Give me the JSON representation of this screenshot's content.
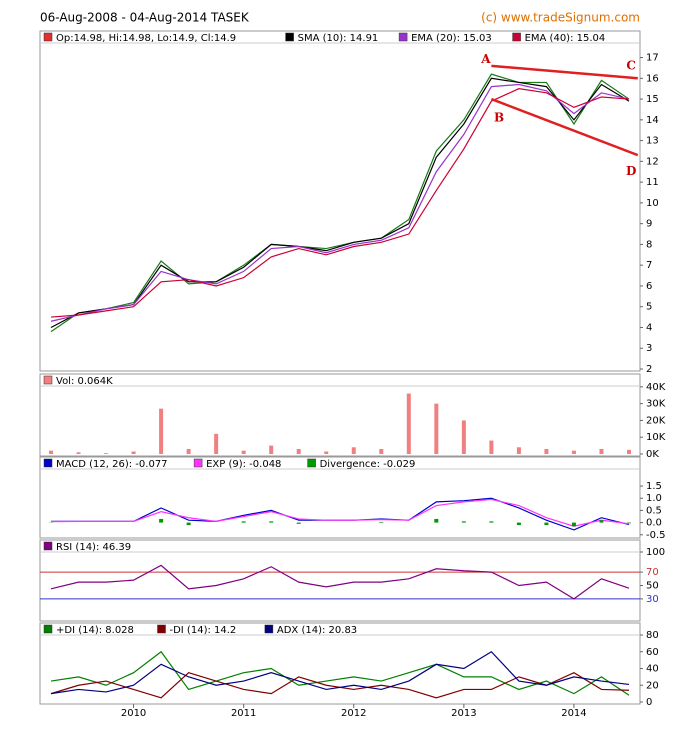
{
  "title": "06-Aug-2008 - 04-Aug-2014 TASEK",
  "credit": "(c) www.tradeSignum.com",
  "chart_data": [
    {
      "type": "line",
      "x": [
        2009.25,
        2009.5,
        2009.75,
        2010,
        2010.25,
        2010.5,
        2010.75,
        2011,
        2011.25,
        2011.5,
        2011.75,
        2012,
        2012.25,
        2012.5,
        2012.75,
        2013,
        2013.25,
        2013.5,
        2013.75,
        2014,
        2014.25,
        2014.5
      ],
      "xlim": [
        2009.15,
        2014.6
      ],
      "ylim": [
        2,
        17.7
      ],
      "yticks": [
        2,
        3,
        4,
        5,
        6,
        7,
        8,
        9,
        10,
        11,
        12,
        13,
        14,
        15,
        16,
        17
      ],
      "series": [
        {
          "name": "Op:14.98, Hi:14.98, Lo:14.9, Cl:14.9",
          "color": "#1a7a1a",
          "legend_color": "#e03030",
          "values": [
            3.8,
            4.7,
            4.9,
            5.2,
            7.2,
            6.1,
            6.2,
            7.0,
            8.0,
            7.9,
            7.8,
            8.1,
            8.3,
            9.2,
            12.5,
            14.0,
            16.2,
            15.8,
            15.8,
            13.8,
            15.9,
            15.0
          ]
        },
        {
          "name": "SMA (10): 14.91",
          "color": "#000000",
          "values": [
            4.0,
            4.7,
            4.9,
            5.1,
            7.0,
            6.2,
            6.2,
            6.9,
            8.0,
            7.9,
            7.7,
            8.1,
            8.3,
            9.0,
            12.2,
            13.8,
            16.0,
            15.8,
            15.6,
            14.0,
            15.7,
            14.9
          ]
        },
        {
          "name": "EMA (20): 15.03",
          "color": "#9933cc",
          "values": [
            4.3,
            4.6,
            4.9,
            5.1,
            6.7,
            6.3,
            6.1,
            6.7,
            7.8,
            7.9,
            7.6,
            8.0,
            8.2,
            8.8,
            11.5,
            13.3,
            15.6,
            15.7,
            15.4,
            14.3,
            15.3,
            15.0
          ]
        },
        {
          "name": "EMA (40): 15.04",
          "color": "#cc0033",
          "values": [
            4.5,
            4.6,
            4.8,
            5.0,
            6.2,
            6.3,
            6.0,
            6.4,
            7.4,
            7.8,
            7.5,
            7.9,
            8.1,
            8.5,
            10.6,
            12.6,
            14.9,
            15.5,
            15.3,
            14.6,
            15.1,
            15.0
          ]
        }
      ],
      "trendlines": [
        {
          "x": [
            2013.25,
            2014.58
          ],
          "y": [
            16.6,
            16.0
          ],
          "color": "#e02020"
        },
        {
          "x": [
            2013.25,
            2014.58
          ],
          "y": [
            15.0,
            12.3
          ],
          "color": "#e02020"
        }
      ],
      "annotations": [
        {
          "text": "A",
          "x": 2013.2,
          "y": 16.9
        },
        {
          "text": "B",
          "x": 2013.32,
          "y": 14.1
        },
        {
          "text": "C",
          "x": 2014.52,
          "y": 16.6
        },
        {
          "text": "D",
          "x": 2014.52,
          "y": 11.5
        }
      ]
    },
    {
      "type": "bar",
      "x": [
        2009.25,
        2009.5,
        2009.75,
        2010,
        2010.25,
        2010.5,
        2010.75,
        2011,
        2011.25,
        2011.5,
        2011.75,
        2012,
        2012.25,
        2012.5,
        2012.75,
        2013,
        2013.25,
        2013.5,
        2013.75,
        2014,
        2014.25,
        2014.5
      ],
      "xlim": [
        2009.15,
        2014.6
      ],
      "ylim": [
        0,
        40500
      ],
      "yticks": [
        {
          "value": 0,
          "label": "0K"
        },
        {
          "value": 10000,
          "label": "10K"
        },
        {
          "value": 20000,
          "label": "20K"
        },
        {
          "value": 30000,
          "label": "30K"
        },
        {
          "value": 40000,
          "label": "40K"
        }
      ],
      "series": [
        {
          "name": "Vol: 0.064K",
          "color": "#f08080",
          "values": [
            2000,
            1000,
            500,
            1500,
            27000,
            3000,
            12000,
            2000,
            5000,
            3000,
            1500,
            4000,
            3000,
            36000,
            30000,
            20000,
            8000,
            4000,
            3000,
            2000,
            3000,
            2500
          ]
        }
      ]
    },
    {
      "type": "line",
      "x": [
        2009.25,
        2009.5,
        2009.75,
        2010,
        2010.25,
        2010.5,
        2010.75,
        2011,
        2011.25,
        2011.5,
        2011.75,
        2012,
        2012.25,
        2012.5,
        2012.75,
        2013,
        2013.25,
        2013.5,
        2013.75,
        2014,
        2014.25,
        2014.5
      ],
      "xlim": [
        2009.15,
        2014.6
      ],
      "ylim": [
        -0.55,
        2.2
      ],
      "yticks": [
        -0.5,
        {
          "value": 0,
          "label": "0.0"
        },
        0.5,
        {
          "value": 1,
          "label": "1.0"
        },
        1.5
      ],
      "series": [
        {
          "name": "MACD (12, 26): -0.077",
          "color": "#0000cc",
          "values": [
            0.05,
            0.05,
            0.05,
            0.05,
            0.6,
            0.1,
            0.05,
            0.3,
            0.5,
            0.1,
            0.1,
            0.1,
            0.15,
            0.1,
            0.85,
            0.9,
            1.0,
            0.6,
            0.1,
            -0.3,
            0.2,
            -0.08
          ]
        },
        {
          "name": "EXP (9): -0.048",
          "color": "#ff33ff",
          "values": [
            0.04,
            0.05,
            0.05,
            0.05,
            0.45,
            0.2,
            0.05,
            0.25,
            0.45,
            0.15,
            0.1,
            0.1,
            0.12,
            0.1,
            0.7,
            0.85,
            0.95,
            0.7,
            0.2,
            -0.15,
            0.1,
            -0.05
          ]
        },
        {
          "name": "Divergence: -0.029",
          "color": "#009900",
          "type": "bar",
          "values": [
            0.01,
            0,
            0,
            0,
            0.15,
            -0.1,
            0,
            0.05,
            0.05,
            -0.05,
            0,
            0,
            0.03,
            0,
            0.15,
            0.05,
            0.05,
            -0.1,
            -0.1,
            -0.15,
            0.1,
            -0.03
          ]
        }
      ]
    },
    {
      "type": "line",
      "x": [
        2009.25,
        2009.5,
        2009.75,
        2010,
        2010.25,
        2010.5,
        2010.75,
        2011,
        2011.25,
        2011.5,
        2011.75,
        2012,
        2012.25,
        2012.5,
        2012.75,
        2013,
        2013.25,
        2013.5,
        2013.75,
        2014,
        2014.25,
        2014.5
      ],
      "xlim": [
        2009.15,
        2014.6
      ],
      "ylim": [
        0,
        100
      ],
      "yticks": [
        30,
        50,
        70,
        100
      ],
      "bands": [
        {
          "value": 70,
          "color": "#cc3333"
        },
        {
          "value": 30,
          "color": "#3333cc"
        }
      ],
      "series": [
        {
          "name": "RSI (14): 46.39",
          "color": "#800080",
          "values": [
            45,
            55,
            55,
            58,
            80,
            45,
            50,
            60,
            78,
            55,
            48,
            55,
            55,
            60,
            75,
            72,
            70,
            50,
            55,
            30,
            60,
            46
          ]
        }
      ]
    },
    {
      "type": "line",
      "x": [
        2009.25,
        2009.5,
        2009.75,
        2010,
        2010.25,
        2010.5,
        2010.75,
        2011,
        2011.25,
        2011.5,
        2011.75,
        2012,
        2012.25,
        2012.5,
        2012.75,
        2013,
        2013.25,
        2013.5,
        2013.75,
        2014,
        2014.25,
        2014.5
      ],
      "xlim": [
        2009.15,
        2014.6
      ],
      "ylim": [
        0,
        80
      ],
      "yticks": [
        0,
        20,
        40,
        60,
        80
      ],
      "xticks": [
        2010,
        2011,
        2012,
        2013,
        2014
      ],
      "series": [
        {
          "name": "+DI (14): 8.028",
          "color": "#008000",
          "values": [
            25,
            30,
            20,
            35,
            60,
            15,
            25,
            35,
            40,
            20,
            25,
            30,
            25,
            35,
            45,
            30,
            30,
            15,
            25,
            10,
            30,
            8
          ]
        },
        {
          "name": "-DI (14): 14.2",
          "color": "#800000",
          "values": [
            10,
            20,
            25,
            15,
            5,
            35,
            25,
            15,
            10,
            30,
            20,
            15,
            20,
            15,
            5,
            15,
            15,
            30,
            20,
            35,
            15,
            14
          ]
        },
        {
          "name": "ADX (14): 20.83",
          "color": "#000080",
          "values": [
            10,
            15,
            12,
            20,
            45,
            30,
            20,
            25,
            35,
            25,
            15,
            20,
            15,
            25,
            45,
            40,
            60,
            25,
            20,
            30,
            25,
            21
          ]
        }
      ]
    }
  ]
}
